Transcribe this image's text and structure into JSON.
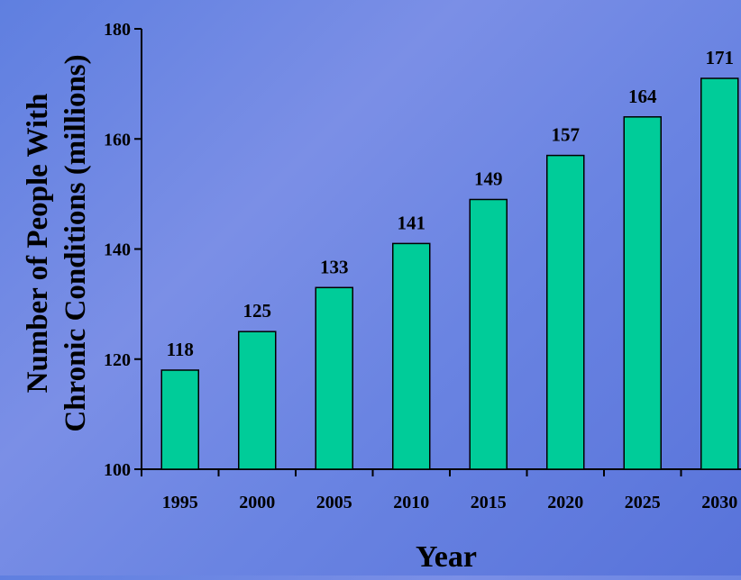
{
  "chart_data": {
    "type": "bar",
    "title": "",
    "xlabel": "Year",
    "ylabel_lines": [
      "Number of People With",
      "Chronic Conditions (millions)"
    ],
    "categories": [
      "1995",
      "2000",
      "2005",
      "2010",
      "2015",
      "2020",
      "2025",
      "2030"
    ],
    "values": [
      118,
      125,
      133,
      141,
      149,
      157,
      164,
      171
    ],
    "ylim": [
      100,
      180
    ],
    "yticks": [
      100,
      120,
      140,
      160,
      180
    ],
    "grid": false,
    "legend": "none",
    "bar_color": "#00cc99",
    "bar_edge_color": "#000000"
  }
}
